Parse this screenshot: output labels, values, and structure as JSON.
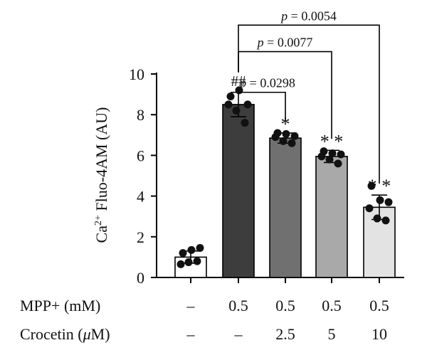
{
  "chart_data": {
    "type": "bar",
    "ylabel_prefix": "Ca",
    "ylabel_sup": "2+",
    "ylabel_rest": " Fluo-4AM (AU)",
    "ylim": [
      0,
      10
    ],
    "yticks": [
      0,
      2,
      4,
      6,
      8,
      10
    ],
    "bars": [
      {
        "mean": 1.0,
        "sd": 0.3,
        "fill": "#ffffff",
        "points": [
          1.2,
          1.35,
          1.45,
          0.65,
          0.75,
          0.8
        ],
        "marker": ""
      },
      {
        "mean": 8.5,
        "sd": 0.6,
        "fill": "#3d3d3d",
        "points": [
          8.9,
          9.2,
          8.5,
          8.5,
          8.2,
          7.6
        ],
        "marker": "##"
      },
      {
        "mean": 6.85,
        "sd": 0.25,
        "fill": "#707070",
        "points": [
          7.1,
          7.05,
          6.95,
          6.9,
          6.7,
          6.6
        ],
        "marker": "*"
      },
      {
        "mean": 5.95,
        "sd": 0.3,
        "fill": "#a9a9a9",
        "points": [
          6.2,
          6.1,
          6.05,
          5.95,
          5.8,
          5.6
        ],
        "marker": "* *"
      },
      {
        "mean": 3.45,
        "sd": 0.6,
        "fill": "#e3e3e3",
        "points": [
          4.5,
          3.8,
          3.7,
          3.4,
          2.9,
          2.8
        ],
        "marker": "* *"
      }
    ],
    "rows": [
      {
        "label": "MPP+ (mM)",
        "values": [
          "–",
          "0.5",
          "0.5",
          "0.5",
          "0.5"
        ]
      },
      {
        "label_pre": "Crocetin (",
        "label_mu": "μ",
        "label_post": "M)",
        "values": [
          "–",
          "–",
          "2.5",
          "5",
          "10"
        ]
      }
    ],
    "comparisons": [
      {
        "from": 1,
        "to": 2,
        "label": "p = 0.0298"
      },
      {
        "from": 1,
        "to": 3,
        "label": "p = 0.0077"
      },
      {
        "from": 1,
        "to": 4,
        "label": "p = 0.0054"
      }
    ]
  }
}
